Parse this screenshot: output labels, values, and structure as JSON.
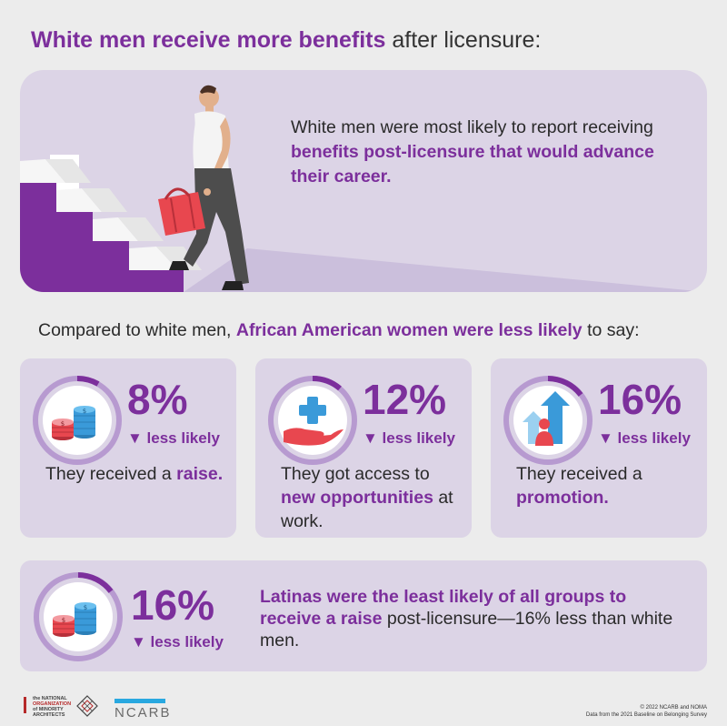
{
  "title": {
    "highlight": "White men receive more benefits",
    "rest": " after licensure:"
  },
  "hero": {
    "text_plain": "White men were most likely to report receiving ",
    "text_bold": "benefits post-licensure that would advance their career."
  },
  "compare": {
    "prefix": "Compared to white men, ",
    "highlight": "African American women were less likely",
    "suffix": " to say:"
  },
  "cards": [
    {
      "pct": "8%",
      "less": "▼ less likely",
      "desc_plain": "They received a ",
      "desc_bold": "raise.",
      "desc_after": "",
      "icon": "coins-icon"
    },
    {
      "pct": "12%",
      "less": "▼ less likely",
      "desc_plain": "They got access to ",
      "desc_bold": "new opportunities",
      "desc_after": " at work.",
      "icon": "hand-plus-icon"
    },
    {
      "pct": "16%",
      "less": "▼ less likely",
      "desc_plain": "They received a ",
      "desc_bold": "promotion.",
      "desc_after": "",
      "icon": "promotion-icon"
    }
  ],
  "bottom": {
    "pct": "16%",
    "less": "▼ less likely",
    "desc_bold": "Latinas were the least likely of all groups to receive a raise",
    "desc_plain": " post-licensure—16% less than white men.",
    "icon": "coins-icon"
  },
  "footer": {
    "noma_line1": "the NATIONAL",
    "noma_line2": "ORGANIZATION",
    "noma_line3": "of MINORITY",
    "noma_line4": "ARCHITECTS",
    "ncarb": "NCARB",
    "copyright": "© 2022 NCARB and NOMA",
    "source": "Data from the 2021 Baseline on Belonging Survey"
  },
  "colors": {
    "accent": "#7c2f9c",
    "card_bg": "#dcd4e6",
    "page_bg": "#ececec",
    "bag": "#e8474f",
    "coin_blue": "#3a9ad9",
    "coin_red": "#e8474f"
  }
}
